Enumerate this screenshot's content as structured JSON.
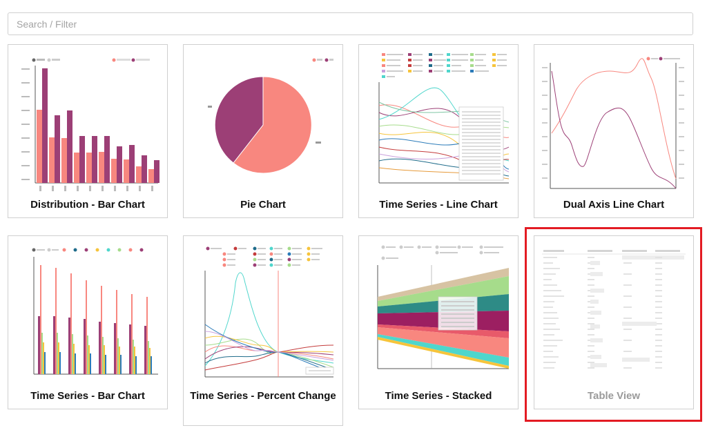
{
  "search": {
    "placeholder": "Search / Filter",
    "value": ""
  },
  "cards": [
    {
      "label": "Distribution - Bar Chart",
      "icon": "bar-chart-thumbnail"
    },
    {
      "label": "Pie Chart",
      "icon": "pie-chart-thumbnail"
    },
    {
      "label": "Time Series - Line Chart",
      "icon": "line-chart-thumbnail"
    },
    {
      "label": "Dual Axis Line Chart",
      "icon": "dual-axis-line-chart-thumbnail"
    },
    {
      "label": "Time Series - Bar Chart",
      "icon": "time-series-bar-chart-thumbnail"
    },
    {
      "label": "Time Series - Percent Change",
      "icon": "percent-change-chart-thumbnail"
    },
    {
      "label": "Time Series - Stacked",
      "icon": "stacked-area-chart-thumbnail"
    },
    {
      "label": "Table View",
      "icon": "table-view-thumbnail",
      "state": "faded"
    }
  ],
  "colors": {
    "pink": "#f8877f",
    "purple": "#9c3f76",
    "highlight": "#e31b23",
    "teal": "#4fd6cc",
    "green": "#a6dc8b",
    "gold": "#f6c43b"
  }
}
